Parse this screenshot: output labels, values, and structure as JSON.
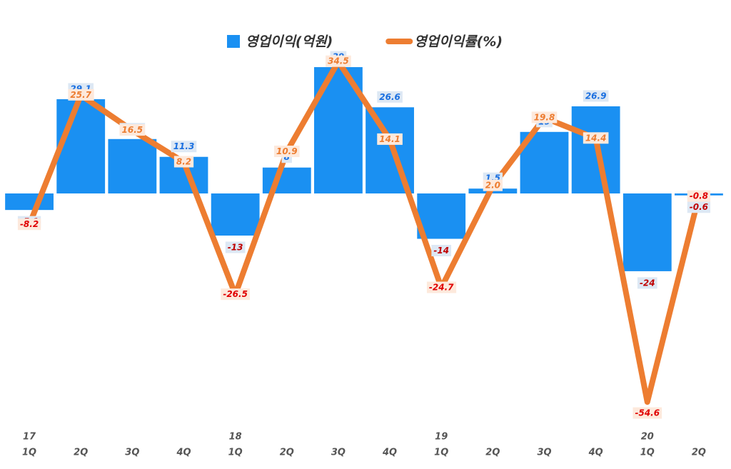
{
  "chart_data": {
    "type": "bar",
    "categories": [
      "1Q",
      "2Q",
      "3Q",
      "4Q",
      "1Q",
      "2Q",
      "3Q",
      "4Q",
      "1Q",
      "2Q",
      "3Q",
      "4Q",
      "1Q",
      "2Q"
    ],
    "years": [
      "17",
      null,
      null,
      null,
      "18",
      null,
      null,
      null,
      "19",
      null,
      null,
      null,
      "20",
      null
    ],
    "series": [
      {
        "name": "영업이익(억원)",
        "type": "bar",
        "color": "#1a90f2",
        "values": [
          -5.1,
          29.1,
          16.8,
          11.3,
          -13,
          8,
          39,
          26.6,
          -14,
          1.5,
          19,
          26.9,
          -24,
          -0.6
        ]
      },
      {
        "name": "영업이익률(%)",
        "type": "line",
        "axis": "y2",
        "color": "#ed7d31",
        "values": [
          -8.2,
          25.7,
          16.5,
          8.2,
          -26.5,
          10.9,
          34.5,
          14.1,
          -24.7,
          2.0,
          19.8,
          14.4,
          -54.6,
          -0.8
        ],
        "value_labels": [
          "-8.2",
          "25.7",
          "16.5",
          "8.2",
          "-26.5",
          "10.9",
          "34.5",
          "14.1",
          "-24.7",
          "2.0",
          "19.8",
          "14.4",
          "-54.6",
          "-0.8"
        ]
      }
    ],
    "ylim": [
      -72.5,
      46.5
    ],
    "y2lim": [
      -61.5,
      39.4
    ],
    "grid": false,
    "legend": "top"
  }
}
